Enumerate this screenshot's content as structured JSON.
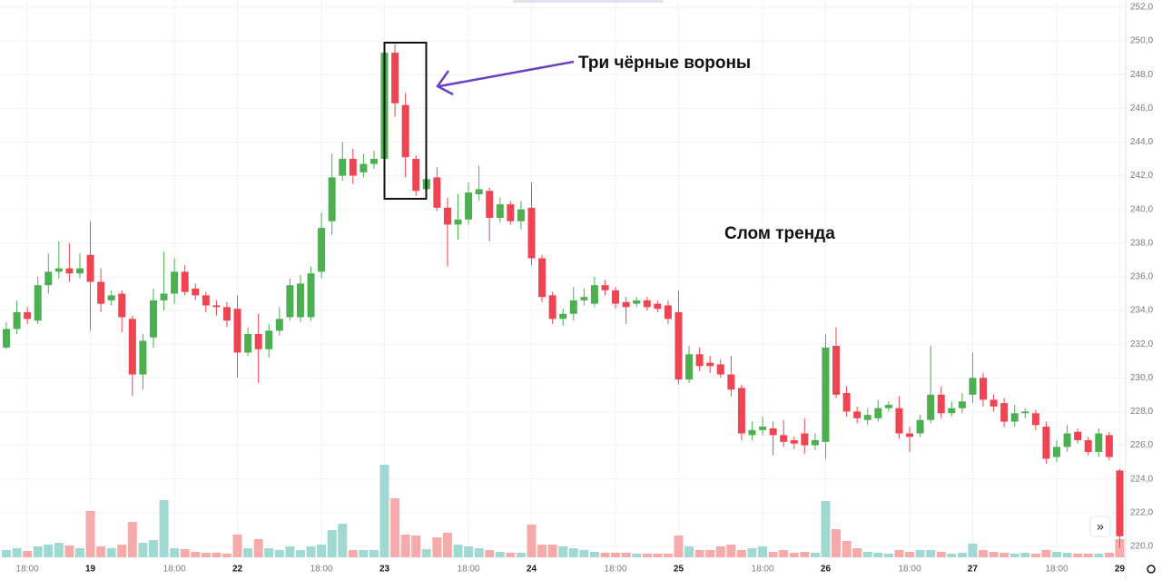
{
  "chart_data": {
    "type": "candlestick",
    "annotations": [
      "Три чёрные вороны",
      "Слом тренда"
    ],
    "categories": [
      null,
      null,
      "18:00",
      null,
      null,
      null,
      null,
      null,
      "19",
      null,
      null,
      null,
      null,
      null,
      null,
      null,
      "18:00",
      null,
      null,
      null,
      null,
      null,
      "22",
      null,
      null,
      null,
      null,
      null,
      null,
      null,
      "18:00",
      null,
      null,
      null,
      null,
      null,
      "23",
      null,
      null,
      null,
      null,
      null,
      null,
      null,
      "18:00",
      null,
      null,
      null,
      null,
      null,
      "24",
      null,
      null,
      null,
      null,
      null,
      null,
      null,
      "18:00",
      null,
      null,
      null,
      null,
      null,
      "25",
      null,
      null,
      null,
      null,
      null,
      null,
      null,
      "18:00",
      null,
      null,
      null,
      null,
      null,
      "26",
      null,
      null,
      null,
      null,
      null,
      null,
      null,
      "18:00",
      null,
      null,
      null,
      null,
      null,
      "27",
      null,
      null,
      null,
      null,
      null,
      null,
      null,
      "18:00",
      null,
      null,
      null,
      null,
      null,
      "29"
    ],
    "open": [
      231.8,
      232.9,
      233.9,
      233.4,
      235.5,
      236.3,
      236.5,
      236.2,
      237.3,
      235.7,
      234.6,
      235,
      233.5,
      230.2,
      232.4,
      234.6,
      235,
      236.3,
      235.3,
      234.9,
      234.3,
      234.2,
      234.1,
      231.5,
      232.6,
      231.7,
      232.8,
      233.6,
      233.6,
      233.6,
      236.3,
      239.3,
      242,
      243,
      242.2,
      242.7,
      243,
      249.3,
      246.2,
      243,
      241.2,
      241.9,
      240.1,
      239.1,
      239.4,
      240.9,
      241.1,
      239.5,
      240.3,
      239.3,
      240.1,
      237.1,
      234.9,
      233.5,
      233.8,
      234.6,
      234.4,
      235.5,
      235.2,
      234.5,
      234.4,
      234.6,
      234.4,
      234.3,
      233.9,
      229.9,
      231.4,
      230.9,
      230.8,
      230.2,
      229.4,
      226.6,
      226.9,
      227,
      226.6,
      226.3,
      226.7,
      226,
      226.2,
      231.9,
      229.1,
      228,
      227.5,
      227.6,
      228.2,
      228.2,
      226.7,
      226.7,
      227.5,
      229,
      227.9,
      228.2,
      229,
      230,
      228.7,
      228.5,
      227.4,
      227.9,
      227.9,
      227.1,
      225.3,
      225.9,
      226.8,
      226.3,
      225.6,
      226.6,
      224.5
    ],
    "high": [
      233.3,
      234.6,
      234.2,
      236,
      237.4,
      238.1,
      238,
      237.4,
      239.3,
      236.5,
      235.2,
      235.2,
      233.7,
      232.6,
      235.3,
      237.5,
      237.1,
      236.7,
      235.6,
      235.1,
      234.6,
      234.5,
      234.9,
      233,
      233.8,
      233.2,
      234.2,
      235.9,
      236.1,
      236.6,
      239.8,
      243.3,
      244,
      243.6,
      243.3,
      243.5,
      249.5,
      249.8,
      246.9,
      243.2,
      242.3,
      242.5,
      240.7,
      240.9,
      241.6,
      242.6,
      241.3,
      240.7,
      240.5,
      240.5,
      241.6,
      237.3,
      235.1,
      234.1,
      235.4,
      235.3,
      236,
      235.8,
      235.4,
      234.8,
      234.8,
      234.8,
      234.6,
      234.6,
      235.2,
      231.9,
      231.8,
      231.3,
      231.1,
      231.3,
      229.6,
      227.4,
      227.7,
      227.4,
      227.5,
      226.5,
      227.6,
      226.7,
      232.6,
      233,
      229.5,
      228.3,
      228.2,
      228.7,
      228.6,
      228.9,
      227.1,
      227.8,
      231.9,
      229.5,
      228.6,
      229.1,
      231.5,
      230.3,
      229,
      228.8,
      228.4,
      228.2,
      228.1,
      227.4,
      226.3,
      227.2,
      227,
      226.5,
      227,
      226.8,
      224.6
    ],
    "low": [
      231.7,
      232.6,
      233.2,
      233.2,
      235,
      235.9,
      235.7,
      235.9,
      232.8,
      233.9,
      234.3,
      232.7,
      228.9,
      229.3,
      231.8,
      234,
      234.4,
      234.9,
      234.6,
      233.9,
      233.7,
      233,
      230,
      231.3,
      229.7,
      231.2,
      232.5,
      233.4,
      233.3,
      233.4,
      235.9,
      238.5,
      241.7,
      241.5,
      241.9,
      242.4,
      242.5,
      245.5,
      241.9,
      240.8,
      240.9,
      239.9,
      236.6,
      238.2,
      239.1,
      240.5,
      238.1,
      239.2,
      239.1,
      238.8,
      236.7,
      234.5,
      233.2,
      233.1,
      233.4,
      234.3,
      234.2,
      234.9,
      234.1,
      233.2,
      234.2,
      234,
      233.9,
      233.2,
      229.6,
      229.7,
      230.4,
      230.3,
      230,
      228.9,
      226.3,
      226.3,
      226.6,
      225.4,
      225.9,
      225.8,
      225.5,
      225.7,
      225.2,
      228.8,
      227.7,
      227.3,
      227.2,
      227.4,
      228,
      226.4,
      225.6,
      226.5,
      227.3,
      227.6,
      227.7,
      227.9,
      228.5,
      228.3,
      228,
      227.1,
      227.1,
      227.6,
      226.9,
      224.9,
      225,
      225.6,
      226.1,
      225.4,
      225.3,
      225.1,
      219.9
    ],
    "close": [
      232.9,
      233.9,
      233.5,
      235.5,
      236.3,
      236.5,
      236.2,
      236.5,
      235.7,
      234.4,
      234.9,
      233.6,
      230.2,
      232.2,
      234.6,
      235,
      236.3,
      235.1,
      234.9,
      234.3,
      234.2,
      233.4,
      231.5,
      232.6,
      231.7,
      232.8,
      233.5,
      235.5,
      235.6,
      236.2,
      238.9,
      241.9,
      243,
      242,
      242.7,
      243,
      249.3,
      246.3,
      243.1,
      241.1,
      241.8,
      240.1,
      239.1,
      239.4,
      241,
      241.2,
      239.5,
      240.3,
      239.3,
      240,
      237.1,
      234.8,
      233.5,
      233.8,
      234.6,
      234.8,
      235.5,
      235.2,
      234.4,
      234.2,
      234.6,
      234.2,
      234.1,
      233.5,
      229.9,
      231.4,
      230.7,
      230.7,
      230.2,
      229.3,
      226.7,
      226.9,
      227.1,
      226.6,
      226.2,
      226.1,
      226,
      226.3,
      231.8,
      229,
      228,
      227.6,
      227.8,
      228.2,
      228.4,
      226.7,
      226.5,
      227.5,
      229,
      227.9,
      228.2,
      228.6,
      230,
      228.7,
      228.3,
      227.4,
      227.9,
      228,
      227.2,
      225.2,
      225.9,
      226.7,
      226.3,
      225.6,
      226.7,
      225.3,
      220.6
    ],
    "volume": [
      8,
      10,
      7,
      12,
      14,
      16,
      13,
      10,
      51,
      12,
      10,
      14,
      39,
      16,
      19,
      63,
      10,
      9,
      6,
      5,
      5,
      4,
      25,
      10,
      20,
      10,
      8,
      12,
      8,
      12,
      14,
      30,
      37,
      8,
      8,
      8,
      102,
      65,
      25,
      24,
      9,
      22,
      27,
      14,
      12,
      10,
      8,
      6,
      5,
      5,
      36,
      14,
      14,
      12,
      10,
      8,
      6,
      5,
      5,
      5,
      4,
      4,
      4,
      4,
      24,
      12,
      8,
      8,
      12,
      14,
      8,
      10,
      12,
      6,
      8,
      5,
      6,
      5,
      62,
      31,
      18,
      10,
      6,
      5,
      4,
      8,
      6,
      8,
      8,
      6,
      4,
      5,
      15,
      8,
      6,
      5,
      4,
      5,
      4,
      8,
      6,
      5,
      4,
      4,
      4,
      5,
      20
    ],
    "up_color": "#4caf50",
    "down_color": "#ef4452",
    "volume_up_color": "#9fd9d2",
    "volume_down_color": "#f6aaaa",
    "ylim": [
      218,
      252.43
    ],
    "yticks": [
      {
        "value": 220,
        "label": "220,0"
      },
      {
        "value": 222,
        "label": "222,0"
      },
      {
        "value": 224,
        "label": "224,0"
      },
      {
        "value": 226,
        "label": "226,0"
      },
      {
        "value": 228,
        "label": "228,0"
      },
      {
        "value": 230,
        "label": "230,0"
      },
      {
        "value": 232,
        "label": "232,0"
      },
      {
        "value": 234,
        "label": "234,0"
      },
      {
        "value": 236,
        "label": "236,0"
      },
      {
        "value": 238,
        "label": "238,0"
      },
      {
        "value": 240,
        "label": "240,0"
      },
      {
        "value": 242,
        "label": "242,0"
      },
      {
        "value": 244,
        "label": "244,0"
      },
      {
        "value": 246,
        "label": "246,0"
      },
      {
        "value": 248,
        "label": "248,0"
      },
      {
        "value": 250,
        "label": "250,0"
      },
      {
        "value": 252,
        "label": "252,0"
      }
    ],
    "grid": true
  }
}
